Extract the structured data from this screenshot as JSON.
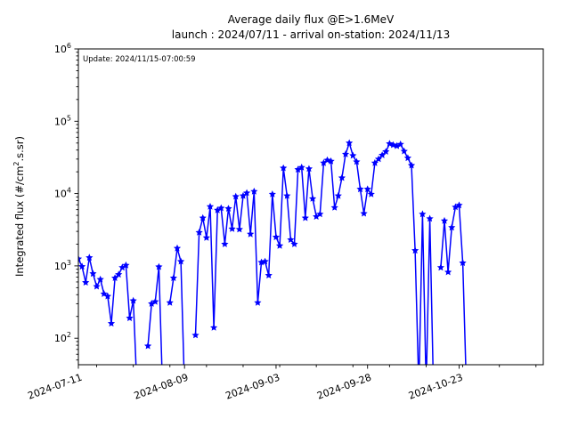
{
  "figure": {
    "title": "Average daily flux @E>1.6MeV",
    "subtitle": "launch : 2024/07/11 - arrival on-station: 2024/11/13",
    "annotation": "Update: 2024/11/15-07:00:59",
    "background": "#ffffff"
  },
  "chart_data": {
    "type": "line",
    "title": "Average daily flux @E>1.6MeV",
    "subtitle": "launch : 2024/07/11 - arrival on-station: 2024/11/13",
    "annotation": "Update: 2024/11/15-07:00:59",
    "ylabel_parts": {
      "pre": "Integrated flux (#/cm",
      "sup": "2",
      "post": ".s.sr)"
    },
    "yscale": "log",
    "ylim": [
      43,
      1000000
    ],
    "y_tick_exponents": [
      2,
      3,
      4,
      5,
      6
    ],
    "x_start_date": "2024-07-11",
    "x_domain_days": 127,
    "x_tick_days": [
      0,
      29,
      54,
      79,
      104
    ],
    "x_tick_labels": [
      "2024-07-11",
      "2024-08-09",
      "2024-09-03",
      "2024-09-28",
      "2024-10-23"
    ],
    "x_minor_tick_start_day": 5,
    "x_minor_tick_step_days": 10,
    "x_tick_label_rotation_deg": 20,
    "grid": false,
    "legend": "none",
    "series": [
      {
        "name": "average daily flux",
        "color": "#0000ff",
        "marker": "star",
        "note": "one value per day from 2024-07-11; null = data gap (line break); values below ylim (e.g. 20) plot as lines descending to the bottom axis",
        "values": [
          1250,
          980,
          590,
          1300,
          780,
          520,
          650,
          410,
          380,
          160,
          680,
          760,
          950,
          1020,
          190,
          330,
          20,
          null,
          null,
          78,
          300,
          320,
          970,
          20,
          null,
          310,
          680,
          1750,
          1150,
          20,
          null,
          null,
          110,
          2900,
          4600,
          2450,
          6600,
          140,
          5900,
          6300,
          2000,
          6200,
          3250,
          9100,
          3200,
          9300,
          10200,
          2750,
          10700,
          310,
          1120,
          1150,
          740,
          9800,
          2500,
          1900,
          22500,
          9300,
          2300,
          2000,
          21500,
          23000,
          4600,
          22000,
          8500,
          4800,
          5200,
          26500,
          29000,
          28000,
          6400,
          9300,
          16500,
          35000,
          50000,
          33500,
          27500,
          11500,
          5300,
          11500,
          9800,
          26500,
          30000,
          34000,
          38000,
          49000,
          47000,
          45500,
          48000,
          38500,
          31000,
          24500,
          1630,
          20,
          5200,
          20,
          4500,
          20,
          null,
          950,
          4200,
          820,
          3400,
          6500,
          6900,
          1100,
          20
        ]
      }
    ]
  }
}
